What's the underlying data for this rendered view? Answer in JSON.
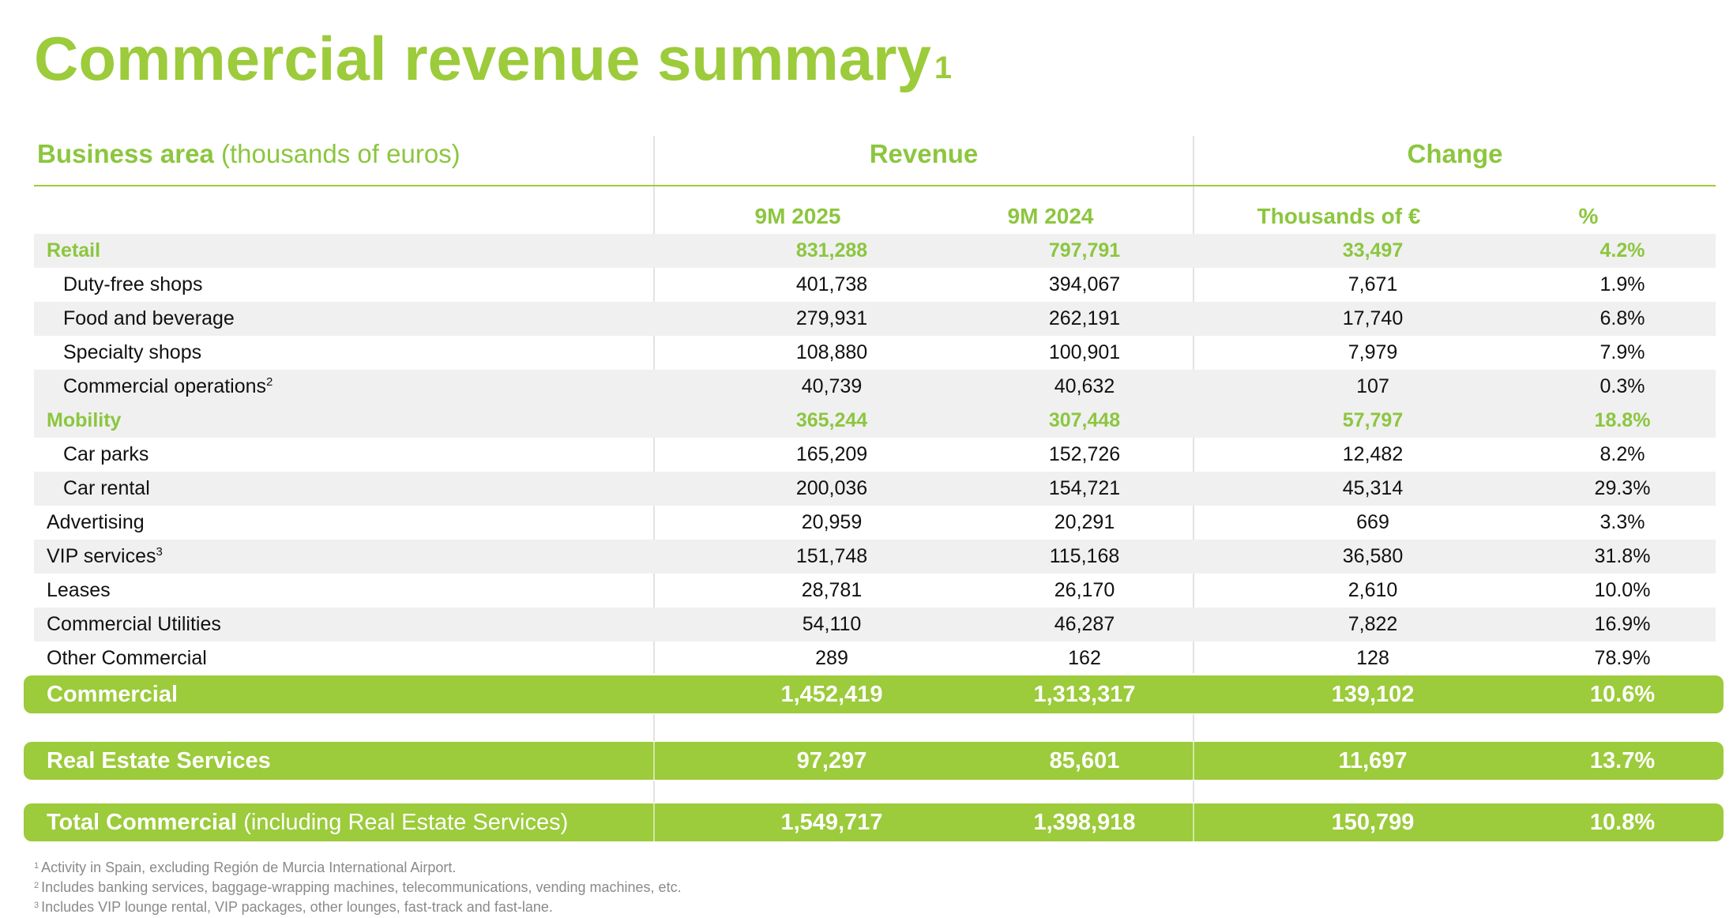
{
  "title": "Commercial revenue summary",
  "title_sup": "1",
  "header": {
    "business_area_bold": "Business area",
    "business_area_unit": "(thousands of euros)",
    "revenue": "Revenue",
    "change": "Change",
    "col_9m2025": "9M 2025",
    "col_9m2024": "9M 2024",
    "col_thousands": "Thousands of €",
    "col_pct": "%"
  },
  "rows": [
    {
      "label": "Retail",
      "sup": "",
      "v2025": "831,288",
      "v2024": "797,791",
      "chg": "33,497",
      "pct": "4.2%"
    },
    {
      "label": "Duty-free shops",
      "sup": "",
      "v2025": "401,738",
      "v2024": "394,067",
      "chg": "7,671",
      "pct": "1.9%"
    },
    {
      "label": "Food and beverage",
      "sup": "",
      "v2025": "279,931",
      "v2024": "262,191",
      "chg": "17,740",
      "pct": "6.8%"
    },
    {
      "label": "Specialty shops",
      "sup": "",
      "v2025": "108,880",
      "v2024": "100,901",
      "chg": "7,979",
      "pct": "7.9%"
    },
    {
      "label": "Commercial operations",
      "sup": "2",
      "v2025": "40,739",
      "v2024": "40,632",
      "chg": "107",
      "pct": "0.3%"
    },
    {
      "label": "Mobility",
      "sup": "",
      "v2025": "365,244",
      "v2024": "307,448",
      "chg": "57,797",
      "pct": "18.8%"
    },
    {
      "label": "Car parks",
      "sup": "",
      "v2025": "165,209",
      "v2024": "152,726",
      "chg": "12,482",
      "pct": "8.2%"
    },
    {
      "label": "Car rental",
      "sup": "",
      "v2025": "200,036",
      "v2024": "154,721",
      "chg": "45,314",
      "pct": "29.3%"
    },
    {
      "label": "Advertising",
      "sup": "",
      "v2025": "20,959",
      "v2024": "20,291",
      "chg": "669",
      "pct": "3.3%"
    },
    {
      "label": "VIP services",
      "sup": "3",
      "v2025": "151,748",
      "v2024": "115,168",
      "chg": "36,580",
      "pct": "31.8%"
    },
    {
      "label": "Leases",
      "sup": "",
      "v2025": "28,781",
      "v2024": "26,170",
      "chg": "2,610",
      "pct": "10.0%"
    },
    {
      "label": "Commercial Utilities",
      "sup": "",
      "v2025": "54,110",
      "v2024": "46,287",
      "chg": "7,822",
      "pct": "16.9%"
    },
    {
      "label": "Other Commercial",
      "sup": "",
      "v2025": "289",
      "v2024": "162",
      "chg": "128",
      "pct": "78.9%"
    }
  ],
  "totals": [
    {
      "label": "Commercial",
      "label_extra": "",
      "v2025": "1,452,419",
      "v2024": "1,313,317",
      "chg": "139,102",
      "pct": "10.6%"
    },
    {
      "label": "Real Estate Services",
      "label_extra": "",
      "v2025": "97,297",
      "v2024": "85,601",
      "chg": "11,697",
      "pct": "13.7%"
    },
    {
      "label": "Total Commercial",
      "label_extra": "(including Real Estate Services)",
      "v2025": "1,549,717",
      "v2024": "1,398,918",
      "chg": "150,799",
      "pct": "10.8%"
    }
  ],
  "footnotes": [
    {
      "num": "1",
      "text": "Activity in Spain, excluding Región de Murcia International Airport."
    },
    {
      "num": "2",
      "text": "Includes banking services, baggage-wrapping machines, telecommunications, vending machines, etc."
    },
    {
      "num": "3",
      "text": "Includes VIP lounge rental, VIP packages, other lounges, fast-track and fast-lane."
    }
  ],
  "colors": {
    "accent": "#9ccb3b",
    "shade": "#f0f0f0"
  }
}
